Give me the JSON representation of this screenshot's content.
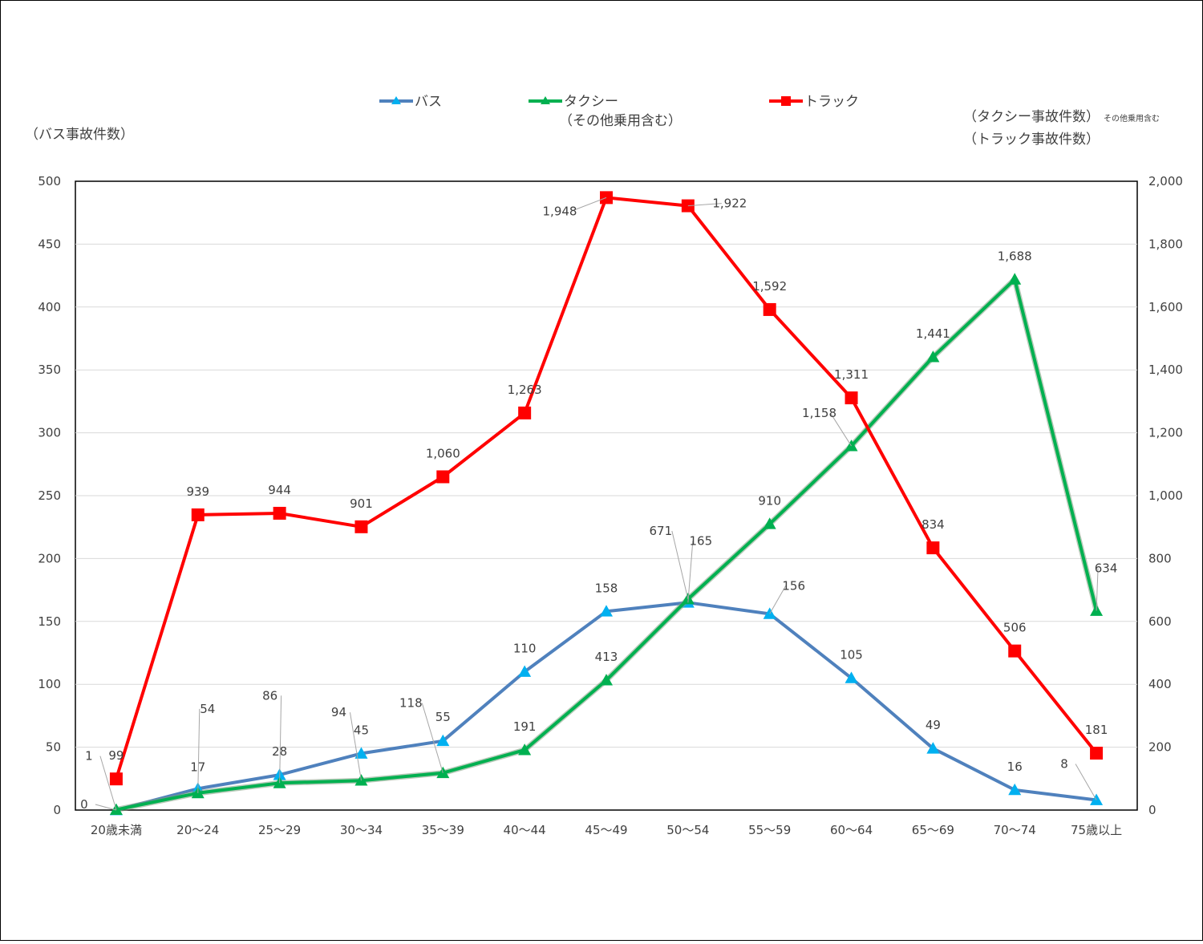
{
  "chart_data": {
    "type": "line",
    "left_axis_title": "（バス事故件数）",
    "right_axis_title_1": "（タクシー事故件数）",
    "right_axis_title_1_note": "その他乗用含む",
    "right_axis_title_2": "（トラック事故件数）",
    "left_ylim": [
      0,
      500
    ],
    "left_ticks": [
      "0",
      "50",
      "100",
      "150",
      "200",
      "250",
      "300",
      "350",
      "400",
      "450",
      "500"
    ],
    "right_ylim": [
      0,
      2000
    ],
    "right_ticks": [
      "0",
      "200",
      "400",
      "600",
      "800",
      "1,000",
      "1,200",
      "1,400",
      "1,600",
      "1,800",
      "2,000"
    ],
    "categories": [
      "20歳未満",
      "20～24",
      "25～29",
      "30～34",
      "35～39",
      "40～44",
      "45～49",
      "50～54",
      "55～59",
      "60～64",
      "65～69",
      "70～74",
      "75歳以上"
    ],
    "grid": true,
    "legend_position": "top",
    "series": [
      {
        "name": "バス",
        "axis": "left",
        "color": "#4F81BD",
        "marker_color": "#00B0F0",
        "marker": "triangle",
        "values": [
          0,
          17,
          28,
          45,
          55,
          110,
          158,
          165,
          156,
          105,
          49,
          16,
          8
        ],
        "labels": [
          "0",
          "17",
          "28",
          "45",
          "55",
          "110",
          "158",
          "165",
          "156",
          "105",
          "49",
          "16",
          "8"
        ]
      },
      {
        "name": "タクシー",
        "name_line2": "（その他乗用含む）",
        "axis": "right",
        "color": "#00B050",
        "marker_color": "#00B050",
        "marker": "triangle",
        "values": [
          1,
          54,
          86,
          94,
          118,
          191,
          413,
          671,
          910,
          1158,
          1441,
          1688,
          634
        ],
        "labels": [
          "1",
          "54",
          "86",
          "94",
          "118",
          "191",
          "413",
          "671",
          "910",
          "1,158",
          "1,441",
          "1,688",
          "634"
        ]
      },
      {
        "name": "トラック",
        "axis": "right",
        "color": "#FF0000",
        "marker_color": "#FF0000",
        "marker": "square",
        "values": [
          99,
          939,
          944,
          901,
          1060,
          1263,
          1948,
          1922,
          1592,
          1311,
          834,
          506,
          181
        ],
        "labels": [
          "99",
          "939",
          "944",
          "901",
          "1,060",
          "1,263",
          "1,948",
          "1,922",
          "1,592",
          "1,311",
          "834",
          "506",
          "181"
        ]
      }
    ]
  }
}
